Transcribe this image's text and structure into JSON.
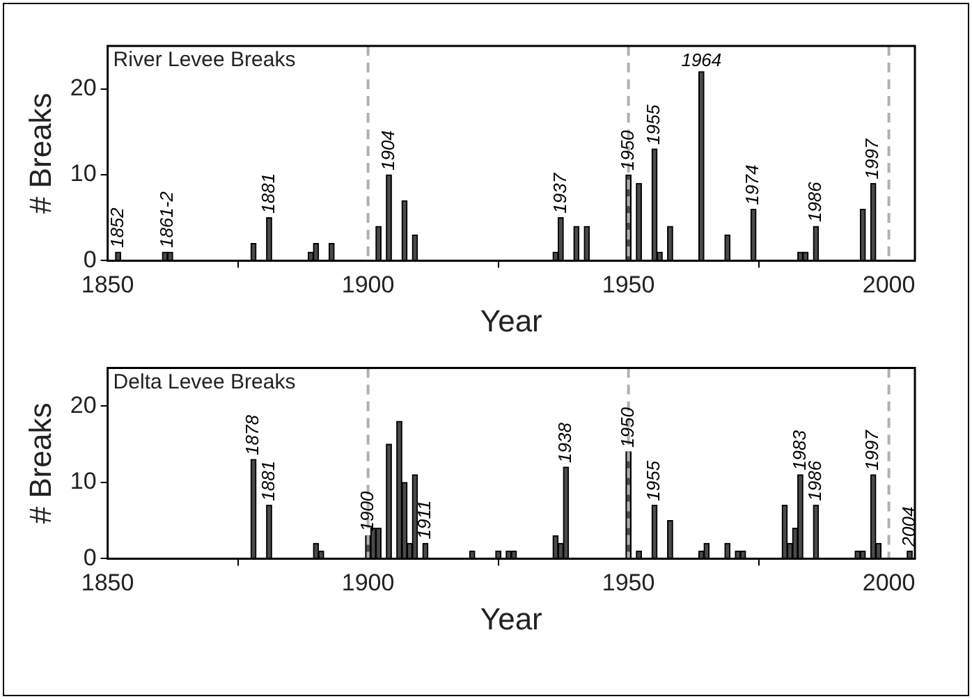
{
  "chart_data": [
    {
      "type": "bar",
      "title": "River Levee Breaks",
      "xlabel": "Year",
      "ylabel": "# Breaks",
      "color": "#4a4a4a",
      "x": [
        1852,
        1861,
        1862,
        1878,
        1881,
        1889,
        1890,
        1893,
        1902,
        1904,
        1907,
        1909,
        1936,
        1937,
        1940,
        1942,
        1950,
        1952,
        1955,
        1956,
        1958,
        1964,
        1969,
        1974,
        1983,
        1984,
        1986,
        1995,
        1997
      ],
      "values": [
        1,
        1,
        1,
        2,
        5,
        1,
        2,
        2,
        4,
        10,
        7,
        3,
        1,
        5,
        4,
        4,
        10,
        9,
        13,
        1,
        4,
        22,
        3,
        6,
        1,
        1,
        4,
        6,
        9
      ],
      "xlim": [
        1850,
        2005
      ],
      "xticks": [
        1850,
        1900,
        1950,
        2000
      ],
      "ylim": [
        0,
        25
      ],
      "yticks": [
        0,
        10,
        20
      ],
      "grid": false,
      "legend": false,
      "ref_lines": [
        {
          "axis": "x",
          "value": 1900,
          "color": "#b0b0b0",
          "line_style": "dashed"
        },
        {
          "axis": "x",
          "value": 1950,
          "color": "#b0b0b0",
          "line_style": "dashed"
        },
        {
          "axis": "x",
          "value": 2000,
          "color": "#b0b0b0",
          "line_style": "dashed"
        }
      ],
      "annotations": [
        {
          "text": "1852",
          "x": 1852,
          "y": 1
        },
        {
          "text": "1861-2",
          "x": 1861.5,
          "y": 1
        },
        {
          "text": "1881",
          "x": 1881,
          "y": 5
        },
        {
          "text": "1904",
          "x": 1904,
          "y": 10
        },
        {
          "text": "1937",
          "x": 1937,
          "y": 5
        },
        {
          "text": "1950",
          "x": 1950,
          "y": 10
        },
        {
          "text": "1955",
          "x": 1955,
          "y": 13
        },
        {
          "text": "1964",
          "x": 1964,
          "y": 22
        },
        {
          "text": "1974",
          "x": 1974,
          "y": 6
        },
        {
          "text": "1986",
          "x": 1986,
          "y": 4
        },
        {
          "text": "1997",
          "x": 1997,
          "y": 9
        }
      ]
    },
    {
      "type": "bar",
      "title": "Delta Levee Breaks",
      "xlabel": "Year",
      "ylabel": "# Breaks",
      "color": "#4a4a4a",
      "x": [
        1878,
        1881,
        1890,
        1891,
        1900,
        1901,
        1902,
        1904,
        1906,
        1907,
        1908,
        1909,
        1911,
        1920,
        1925,
        1927,
        1928,
        1936,
        1937,
        1938,
        1950,
        1952,
        1955,
        1958,
        1964,
        1965,
        1969,
        1971,
        1972,
        1980,
        1981,
        1982,
        1983,
        1986,
        1994,
        1995,
        1997,
        1998,
        2004
      ],
      "values": [
        13,
        7,
        2,
        1,
        3,
        4,
        4,
        15,
        18,
        10,
        2,
        11,
        2,
        1,
        1,
        1,
        1,
        3,
        2,
        12,
        14,
        1,
        7,
        5,
        1,
        2,
        2,
        1,
        1,
        7,
        2,
        4,
        11,
        7,
        1,
        1,
        11,
        2,
        1
      ],
      "xlim": [
        1850,
        2005
      ],
      "xticks": [
        1850,
        1900,
        1950,
        2000
      ],
      "ylim": [
        0,
        25
      ],
      "yticks": [
        0,
        10,
        20
      ],
      "grid": false,
      "legend": false,
      "ref_lines": [
        {
          "axis": "x",
          "value": 1900,
          "color": "#b0b0b0",
          "line_style": "dashed"
        },
        {
          "axis": "x",
          "value": 1950,
          "color": "#b0b0b0",
          "line_style": "dashed"
        },
        {
          "axis": "x",
          "value": 2000,
          "color": "#b0b0b0",
          "line_style": "dashed"
        }
      ],
      "annotations": [
        {
          "text": "1878",
          "x": 1878,
          "y": 13
        },
        {
          "text": "1881",
          "x": 1881,
          "y": 7
        },
        {
          "text": "1900",
          "x": 1900,
          "y": 3
        },
        {
          "text": "1911",
          "x": 1911,
          "y": 2
        },
        {
          "text": "1938",
          "x": 1938,
          "y": 12
        },
        {
          "text": "1950",
          "x": 1950,
          "y": 14
        },
        {
          "text": "1955",
          "x": 1955,
          "y": 7
        },
        {
          "text": "1983",
          "x": 1983,
          "y": 11
        },
        {
          "text": "1986",
          "x": 1986,
          "y": 7
        },
        {
          "text": "1997",
          "x": 1997,
          "y": 11
        },
        {
          "text": "2004",
          "x": 2004,
          "y": 1
        }
      ]
    }
  ]
}
